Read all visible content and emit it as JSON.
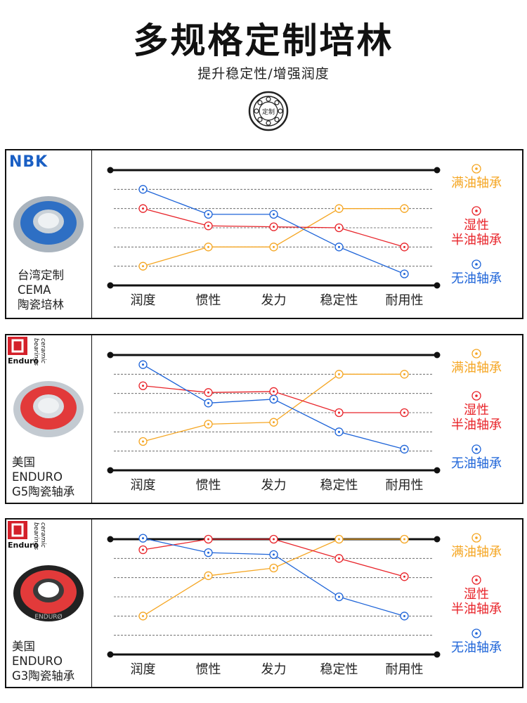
{
  "header": {
    "title": "多规格定制培林",
    "subtitle": "提升稳定性/增强润度",
    "badge": "定制"
  },
  "panels": [
    {
      "brand": "NBK",
      "label": "台湾定制\nCEMA\n陶瓷培林"
    },
    {
      "brand": "Enduro",
      "brand_words": [
        "bearings",
        "ceramic"
      ],
      "label": "美国\nENDURO\nG5陶瓷轴承"
    },
    {
      "brand": "Enduro",
      "brand_words": [
        "bearings",
        "ceramic"
      ],
      "bearing_text": "ENDURØ",
      "label": "美国\nENDURO\nG3陶瓷轴承"
    }
  ],
  "chart_data": [
    {
      "type": "line",
      "categories": [
        "润度",
        "惯性",
        "发力",
        "稳定性",
        "耐用性"
      ],
      "ylim": [
        0,
        6
      ],
      "yticks": [
        1,
        2,
        3,
        4,
        5
      ],
      "grid": true,
      "series": [
        {
          "name": "满油轴承",
          "color": "#f5a623",
          "values": [
            1,
            2,
            2,
            4,
            4
          ]
        },
        {
          "name": "湿性\n半油轴承",
          "color": "#e8242a",
          "values": [
            4,
            3.1,
            3.05,
            3,
            2
          ]
        },
        {
          "name": "无油轴承",
          "color": "#1e64d8",
          "values": [
            5,
            3.7,
            3.7,
            2,
            0.6
          ]
        }
      ]
    },
    {
      "type": "line",
      "categories": [
        "润度",
        "惯性",
        "发力",
        "稳定性",
        "耐用性"
      ],
      "ylim": [
        0,
        6
      ],
      "yticks": [
        1,
        2,
        3,
        4,
        5
      ],
      "grid": true,
      "series": [
        {
          "name": "满油轴承",
          "color": "#f5a623",
          "values": [
            1.5,
            2.4,
            2.5,
            5,
            5
          ]
        },
        {
          "name": "湿性\n半油轴承",
          "color": "#e8242a",
          "values": [
            4.4,
            4.05,
            4.1,
            3,
            3
          ]
        },
        {
          "name": "无油轴承",
          "color": "#1e64d8",
          "values": [
            5.5,
            3.5,
            3.7,
            2,
            1.1
          ]
        }
      ]
    },
    {
      "type": "line",
      "categories": [
        "润度",
        "惯性",
        "发力",
        "稳定性",
        "耐用性"
      ],
      "ylim": [
        0,
        6
      ],
      "yticks": [
        1,
        2,
        3,
        4,
        5
      ],
      "grid": true,
      "series": [
        {
          "name": "满油轴承",
          "color": "#f5a623",
          "values": [
            2,
            4.1,
            4.5,
            6,
            6
          ]
        },
        {
          "name": "湿性\n半油轴承",
          "color": "#e8242a",
          "values": [
            5.45,
            6,
            6,
            5,
            4.05
          ]
        },
        {
          "name": "无油轴承",
          "color": "#1e64d8",
          "values": [
            6.05,
            5.3,
            5.2,
            3,
            2
          ]
        }
      ]
    }
  ]
}
